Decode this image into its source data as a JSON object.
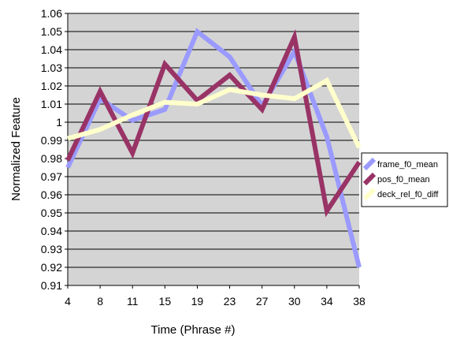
{
  "chart_data": {
    "type": "line",
    "title": "",
    "xlabel": "Time (Phrase #)",
    "ylabel": "Normalized Feature",
    "categories": [
      "4",
      "8",
      "11",
      "15",
      "19",
      "23",
      "27",
      "30",
      "34",
      "38"
    ],
    "ylim": [
      0.91,
      1.06
    ],
    "yticks": [
      "0.91",
      "0.92",
      "0.93",
      "0.94",
      "0.95",
      "0.96",
      "0.97",
      "0.98",
      "0.99",
      "1",
      "1.01",
      "1.02",
      "1.03",
      "1.04",
      "1.05",
      "1.06"
    ],
    "grid": true,
    "legend_position": "right",
    "plot_background": "#d4d4d4",
    "series": [
      {
        "name": "frame_f0_mean",
        "color": "#9a9aff",
        "values": [
          0.975,
          1.013,
          1.001,
          1.007,
          1.05,
          1.036,
          1.009,
          1.039,
          0.992,
          0.92
        ]
      },
      {
        "name": "pos_f0_mean",
        "color": "#993366",
        "values": [
          0.979,
          1.017,
          0.983,
          1.032,
          1.012,
          1.026,
          1.007,
          1.047,
          0.951,
          0.978
        ]
      },
      {
        "name": "deck_rel_f0_diff",
        "color": "#ffffcc",
        "values": [
          0.991,
          0.996,
          1.004,
          1.011,
          1.01,
          1.018,
          1.015,
          1.013,
          1.023,
          0.986
        ]
      }
    ]
  }
}
